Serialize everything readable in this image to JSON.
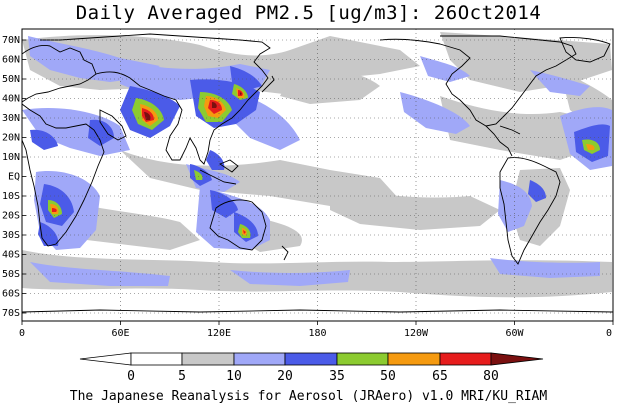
{
  "title": "Daily Averaged PM2.5 [ug/m3]: 26Oct2014",
  "footer": "The Japanese Reanalysis for Aerosol (JRAero) v1.0 MRI/KU_RIAM",
  "map": {
    "lon_range": [
      0,
      360
    ],
    "lat_range": [
      -75,
      75
    ],
    "lat_labels": [
      "70N",
      "60N",
      "50N",
      "40N",
      "30N",
      "20N",
      "10N",
      "EQ",
      "10S",
      "20S",
      "30S",
      "40S",
      "50S",
      "60S",
      "70S"
    ],
    "lon_labels": [
      "0",
      "60E",
      "120E",
      "180",
      "120W",
      "60W",
      "0"
    ],
    "gridlines": "dotted"
  },
  "colorbar": {
    "ticks": [
      "0",
      "5",
      "10",
      "20",
      "35",
      "50",
      "65",
      "80"
    ],
    "colors": [
      "#ffffff",
      "#ffffff",
      "#c8c8c8",
      "#a0a8f8",
      "#4b5be8",
      "#8ccb30",
      "#f59a10",
      "#e61c1c",
      "#7a1010"
    ]
  }
}
